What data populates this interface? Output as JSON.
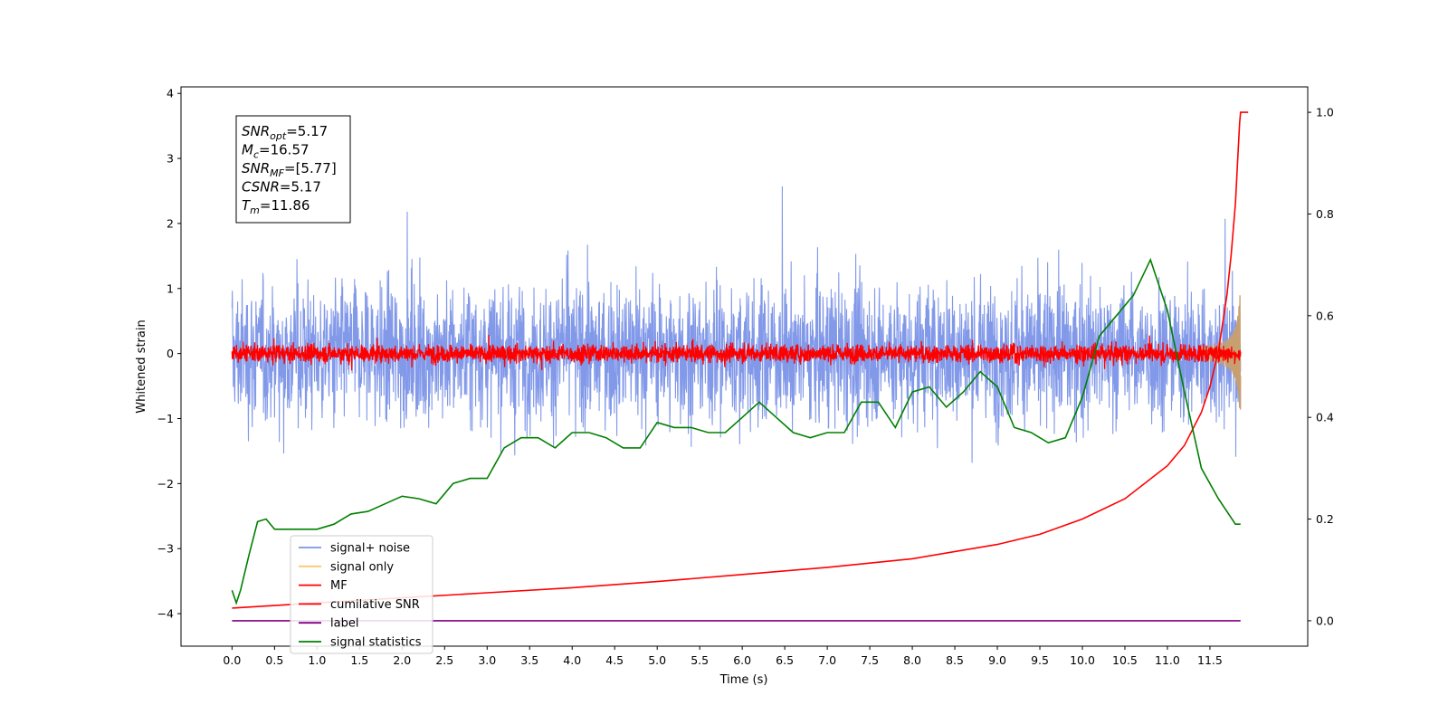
{
  "chart_data": {
    "type": "line",
    "title": "",
    "xlabel": "Time (s)",
    "ylabel": "Whitened strain",
    "xlim": [
      -0.6,
      12.65
    ],
    "ylim": [
      -4.5,
      4.1
    ],
    "y2lim": [
      -0.05,
      1.05
    ],
    "xticks": [
      "0.0",
      "0.5",
      "1.0",
      "1.5",
      "2.0",
      "2.5",
      "3.0",
      "3.5",
      "4.0",
      "4.5",
      "5.0",
      "5.5",
      "6.0",
      "6.5",
      "7.0",
      "7.5",
      "8.0",
      "8.5",
      "9.0",
      "9.5",
      "10.0",
      "10.5",
      "11.0",
      "11.5"
    ],
    "yticks": [
      "4",
      "3",
      "2",
      "1",
      "0",
      "−1",
      "−2",
      "−3",
      "−4"
    ],
    "y2ticks": [
      "1.0",
      "0.8",
      "0.6",
      "0.4",
      "0.2",
      "0.0"
    ],
    "grid": false,
    "legend_position": "lower-left",
    "annotation": {
      "lines": [
        {
          "base": "SNR",
          "sub": "opt",
          "value": "=5.17"
        },
        {
          "base": "M",
          "sub": "c",
          "value": "=16.57"
        },
        {
          "base": "SNR",
          "sub": "MF",
          "value": "=[5.77]"
        },
        {
          "base": "CSNR",
          "sub": "",
          "value": "=5.17"
        },
        {
          "base": "T",
          "sub": "m",
          "value": "=11.86"
        }
      ]
    },
    "series": [
      {
        "name": "signal+ noise",
        "color": "#7b93e8",
        "axis": "left",
        "kind": "noise",
        "amplitude_sd": 1.0,
        "range": [
          -3.6,
          3.7
        ],
        "x": [
          0.0,
          11.86
        ]
      },
      {
        "name": "signal only",
        "color": "#f5c86e",
        "axis": "left",
        "kind": "chirp",
        "peak": 0.9,
        "x": [
          11.4,
          11.86
        ]
      },
      {
        "name": "MF",
        "color": "#ff0000",
        "axis": "left",
        "kind": "noise",
        "amplitude_sd": 0.13,
        "range": [
          -0.3,
          0.7
        ],
        "x": [
          0.0,
          11.86
        ]
      },
      {
        "name": "cumilative SNR",
        "color": "#ff0000",
        "axis": "right",
        "x": [
          0.0,
          1.0,
          2.0,
          3.0,
          4.0,
          5.0,
          6.0,
          7.0,
          8.0,
          9.0,
          9.5,
          10.0,
          10.5,
          11.0,
          11.2,
          11.4,
          11.5,
          11.6,
          11.7,
          11.75,
          11.8,
          11.83,
          11.85,
          11.86,
          11.95
        ],
        "values": [
          0.025,
          0.035,
          0.045,
          0.055,
          0.065,
          0.077,
          0.091,
          0.105,
          0.122,
          0.15,
          0.17,
          0.2,
          0.24,
          0.305,
          0.345,
          0.41,
          0.46,
          0.53,
          0.64,
          0.72,
          0.82,
          0.92,
          0.98,
          1.0,
          1.0
        ]
      },
      {
        "name": "label",
        "color": "#800080",
        "axis": "right",
        "x": [
          0.0,
          11.86
        ],
        "values": [
          0.0,
          0.0
        ]
      },
      {
        "name": "signal statistics",
        "color": "#008000",
        "axis": "right",
        "x": [
          0.0,
          0.05,
          0.1,
          0.2,
          0.3,
          0.4,
          0.5,
          0.6,
          0.8,
          1.0,
          1.2,
          1.4,
          1.6,
          1.8,
          2.0,
          2.2,
          2.4,
          2.6,
          2.8,
          3.0,
          3.2,
          3.4,
          3.6,
          3.8,
          4.0,
          4.2,
          4.4,
          4.6,
          4.8,
          5.0,
          5.2,
          5.4,
          5.6,
          5.8,
          6.0,
          6.2,
          6.4,
          6.6,
          6.8,
          7.0,
          7.2,
          7.4,
          7.6,
          7.8,
          8.0,
          8.2,
          8.4,
          8.6,
          8.8,
          9.0,
          9.2,
          9.4,
          9.6,
          9.8,
          10.0,
          10.2,
          10.4,
          10.6,
          10.8,
          11.0,
          11.2,
          11.4,
          11.6,
          11.8,
          11.86
        ],
        "values": [
          0.06,
          0.035,
          0.06,
          0.13,
          0.195,
          0.2,
          0.18,
          0.18,
          0.18,
          0.18,
          0.19,
          0.21,
          0.215,
          0.23,
          0.245,
          0.24,
          0.23,
          0.27,
          0.28,
          0.28,
          0.34,
          0.36,
          0.36,
          0.34,
          0.37,
          0.37,
          0.36,
          0.34,
          0.34,
          0.39,
          0.38,
          0.38,
          0.37,
          0.37,
          0.4,
          0.43,
          0.4,
          0.37,
          0.36,
          0.37,
          0.37,
          0.43,
          0.43,
          0.38,
          0.45,
          0.46,
          0.42,
          0.45,
          0.49,
          0.46,
          0.38,
          0.37,
          0.35,
          0.36,
          0.44,
          0.56,
          0.6,
          0.64,
          0.71,
          0.61,
          0.45,
          0.3,
          0.24,
          0.19,
          0.19
        ]
      }
    ]
  }
}
